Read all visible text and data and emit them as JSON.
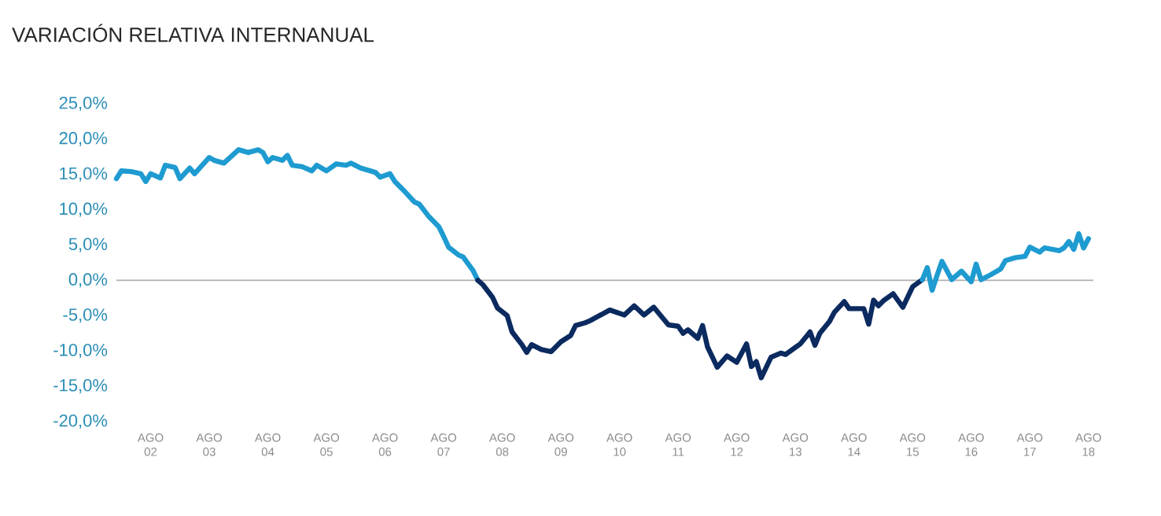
{
  "chart_data": {
    "type": "line",
    "title": "VARIACIÓN RELATIVA INTERNANUAL",
    "xlim": [
      "2002-01",
      "2018-09"
    ],
    "xticks": [
      {
        "value": "2002-08",
        "label": "AGO 02"
      },
      {
        "value": "2003-08",
        "label": "AGO 03"
      },
      {
        "value": "2004-08",
        "label": "AGO 04"
      },
      {
        "value": "2005-08",
        "label": "AGO 05"
      },
      {
        "value": "2006-08",
        "label": "AGO 06"
      },
      {
        "value": "2007-08",
        "label": "AGO 07"
      },
      {
        "value": "2008-08",
        "label": "AGO 08"
      },
      {
        "value": "2009-08",
        "label": "AGO 09"
      },
      {
        "value": "2010-08",
        "label": "AGO 10"
      },
      {
        "value": "2011-08",
        "label": "AGO 11"
      },
      {
        "value": "2012-08",
        "label": "AGO 12"
      },
      {
        "value": "2013-08",
        "label": "AGO 13"
      },
      {
        "value": "2014-08",
        "label": "AGO 14"
      },
      {
        "value": "2015-08",
        "label": "AGO 15"
      },
      {
        "value": "2016-08",
        "label": "AGO 16"
      },
      {
        "value": "2017-08",
        "label": "AGO 17"
      },
      {
        "value": "2018-08",
        "label": "AGO 18"
      }
    ],
    "ylim": [
      -20,
      25
    ],
    "yticks": [
      {
        "value": -20,
        "label": "-20,0%"
      },
      {
        "value": -15,
        "label": "-15,0%"
      },
      {
        "value": -10,
        "label": "-10,0%"
      },
      {
        "value": -5,
        "label": "-5,0%"
      },
      {
        "value": 0,
        "label": "0,0%"
      },
      {
        "value": 5,
        "label": "5,0%"
      },
      {
        "value": 10,
        "label": "10,0%"
      },
      {
        "value": 15,
        "label": "15,0%"
      },
      {
        "value": 20,
        "label": "20,0%"
      },
      {
        "value": 25,
        "label": "25,0%"
      }
    ],
    "ref_lines": [
      {
        "axis": "y",
        "value": 0,
        "color": "#b0b0b0"
      }
    ],
    "series": [
      {
        "color": "#1e9bd0",
        "x": [
          "2002-01",
          "2002-02",
          "2002-04",
          "2002-06",
          "2002-07",
          "2002-08",
          "2002-10",
          "2002-11",
          "2003-01",
          "2003-02",
          "2003-04",
          "2003-05",
          "2003-08",
          "2003-09",
          "2003-11",
          "2004-02",
          "2004-04",
          "2004-06",
          "2004-07",
          "2004-08",
          "2004-09",
          "2004-11",
          "2004-12",
          "2005-01",
          "2005-03",
          "2005-05",
          "2005-06",
          "2005-08",
          "2005-10",
          "2005-12",
          "2006-01",
          "2006-03",
          "2006-06",
          "2006-07",
          "2006-09",
          "2006-10",
          "2006-12",
          "2007-02",
          "2007-03",
          "2007-05",
          "2007-07",
          "2007-08",
          "2007-09",
          "2007-11",
          "2007-12",
          "2008-02",
          "2008-03"
        ],
        "values": [
          14.4,
          15.5,
          15.4,
          15.1,
          14.0,
          15.1,
          14.5,
          16.3,
          16.0,
          14.4,
          15.9,
          15.1,
          17.4,
          17.0,
          16.6,
          18.5,
          18.1,
          18.5,
          18.1,
          16.8,
          17.4,
          17.0,
          17.7,
          16.3,
          16.1,
          15.5,
          16.3,
          15.5,
          16.5,
          16.3,
          16.6,
          15.9,
          15.3,
          14.6,
          15.1,
          14.0,
          12.6,
          11.1,
          10.8,
          9.0,
          7.6,
          6.2,
          4.7,
          3.6,
          3.3,
          1.4,
          0.0
        ]
      },
      {
        "color": "#0b2a5f",
        "x": [
          "2008-03",
          "2008-04",
          "2008-06",
          "2008-07",
          "2008-09",
          "2008-10",
          "2008-12",
          "2009-01",
          "2009-02",
          "2009-04",
          "2009-06",
          "2009-08",
          "2009-10",
          "2009-11",
          "2010-01",
          "2010-02",
          "2010-06",
          "2010-09",
          "2010-11",
          "2011-01",
          "2011-03",
          "2011-06",
          "2011-08",
          "2011-09",
          "2011-10",
          "2011-12",
          "2012-01",
          "2012-02",
          "2012-04",
          "2012-06",
          "2012-08",
          "2012-10",
          "2012-11",
          "2012-12",
          "2013-01",
          "2013-03",
          "2013-05",
          "2013-06",
          "2013-08",
          "2013-09",
          "2013-11",
          "2013-12",
          "2014-01",
          "2014-03",
          "2014-04",
          "2014-06",
          "2014-07",
          "2014-10",
          "2014-11",
          "2014-12",
          "2015-01",
          "2015-02",
          "2015-04",
          "2015-06",
          "2015-08",
          "2015-10"
        ],
        "values": [
          0.0,
          -0.6,
          -2.4,
          -3.9,
          -5.0,
          -7.3,
          -9.1,
          -10.2,
          -9.1,
          -9.8,
          -10.1,
          -8.7,
          -7.8,
          -6.4,
          -6.0,
          -5.7,
          -4.2,
          -4.9,
          -3.6,
          -4.9,
          -3.8,
          -6.3,
          -6.5,
          -7.5,
          -7.0,
          -8.2,
          -6.4,
          -9.4,
          -12.3,
          -10.7,
          -11.6,
          -9.0,
          -12.2,
          -11.5,
          -13.8,
          -10.9,
          -10.3,
          -10.5,
          -9.5,
          -9.0,
          -7.3,
          -9.2,
          -7.5,
          -5.8,
          -4.5,
          -3.0,
          -4.0,
          -4.0,
          -6.2,
          -2.8,
          -3.6,
          -2.9,
          -1.9,
          -3.8,
          -0.9,
          0.1
        ]
      },
      {
        "color": "#1e9bd0",
        "x": [
          "2015-10",
          "2015-11",
          "2015-12",
          "2016-01",
          "2016-02",
          "2016-04",
          "2016-06",
          "2016-08",
          "2016-09",
          "2016-10",
          "2016-12",
          "2017-02",
          "2017-03",
          "2017-05",
          "2017-07",
          "2017-08",
          "2017-10",
          "2017-11",
          "2018-02",
          "2018-03",
          "2018-04",
          "2018-05",
          "2018-06",
          "2018-07",
          "2018-08"
        ],
        "values": [
          0.1,
          1.8,
          -1.4,
          0.7,
          2.7,
          0.1,
          1.3,
          -0.2,
          2.3,
          0.1,
          0.8,
          1.6,
          2.8,
          3.2,
          3.4,
          4.7,
          4.0,
          4.6,
          4.2,
          4.6,
          5.5,
          4.4,
          6.6,
          4.6,
          5.9
        ]
      }
    ]
  }
}
